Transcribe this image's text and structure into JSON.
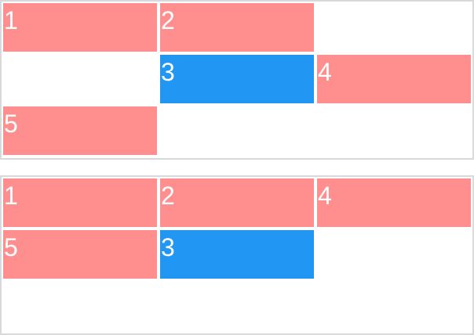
{
  "colors": {
    "pink": "#ff8f8f",
    "blue": "#2196f3",
    "border": "#d9d9d9",
    "text": "#ffffff"
  },
  "top_grid": {
    "items": [
      {
        "label": "1",
        "color": "pink"
      },
      {
        "label": "2",
        "color": "pink"
      },
      {
        "label": "3",
        "color": "blue"
      },
      {
        "label": "4",
        "color": "pink"
      },
      {
        "label": "5",
        "color": "pink"
      }
    ]
  },
  "bottom_grid": {
    "items": [
      {
        "label": "1",
        "color": "pink"
      },
      {
        "label": "2",
        "color": "pink"
      },
      {
        "label": "4",
        "color": "pink"
      },
      {
        "label": "5",
        "color": "pink"
      },
      {
        "label": "3",
        "color": "blue"
      }
    ]
  }
}
